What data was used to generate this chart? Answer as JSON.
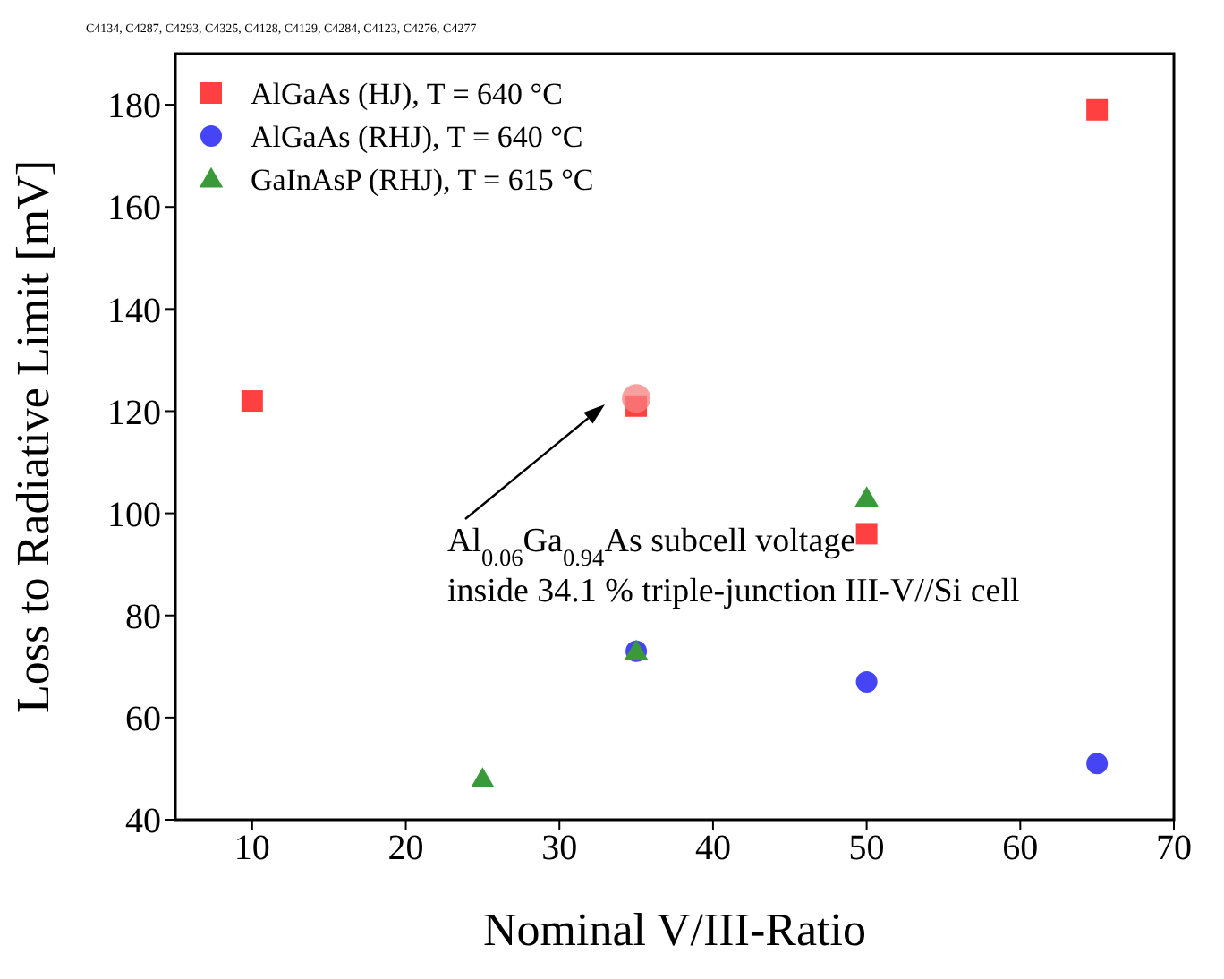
{
  "chart_data": {
    "type": "scatter",
    "xlabel": "Nominal V/III-Ratio",
    "ylabel": "Loss to Radiative Limit [mV]",
    "xlim": [
      5,
      70
    ],
    "xticks": [
      10,
      20,
      30,
      40,
      50,
      60,
      70
    ],
    "ylim": [
      40,
      190
    ],
    "yticks": [
      40,
      60,
      80,
      100,
      120,
      140,
      160,
      180
    ],
    "grid": false,
    "legend": "top left",
    "series": [
      {
        "name": "AlGaAs (HJ), T = 640 °C",
        "color": "#ff4040",
        "marker": "square",
        "x": [
          10,
          35,
          50,
          65
        ],
        "values": [
          122,
          121,
          96,
          179
        ]
      },
      {
        "name": "AlGaAs (RHJ), T = 640 °C",
        "color": "#4545f5",
        "marker": "circle",
        "x": [
          35,
          50,
          65
        ],
        "values": [
          73,
          67,
          51
        ]
      },
      {
        "name": "GaInAsP (RHJ), T = 615 °C",
        "color": "#3a9a3a",
        "marker": "triangle",
        "x": [
          25,
          35,
          50
        ],
        "values": [
          48,
          73,
          103
        ]
      },
      {
        "color": "#f58080",
        "marker": "circle",
        "x": [
          35
        ],
        "values": [
          122.5
        ]
      }
    ],
    "annotations": [
      "C4134, C4287, C4293, C4325, C4128, C4129, C4284, C4123, C4276, C4277",
      "Al$_{0.06}$Ga$_{0.94}$As subcell voltage\ninside 34.1 % triple-junction III-V//Si cell"
    ]
  }
}
